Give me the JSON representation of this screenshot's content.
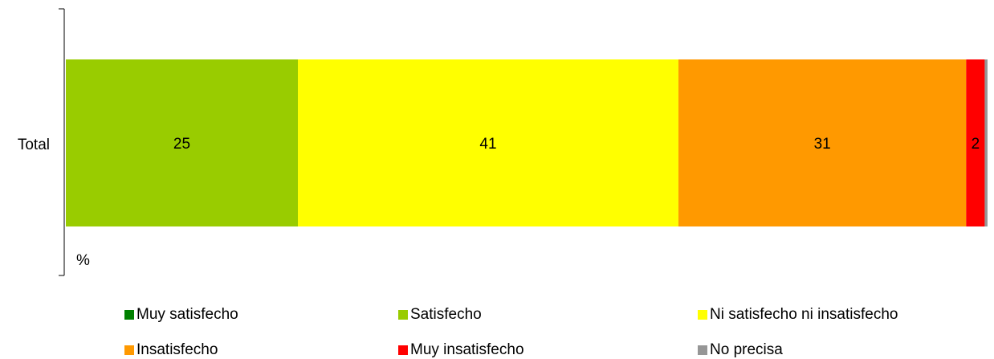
{
  "chart_data": {
    "type": "bar",
    "orientation": "horizontal",
    "stacked": true,
    "categories": [
      "Total"
    ],
    "unit_label": "%",
    "xlim": [
      0,
      100
    ],
    "grid": false,
    "legend_position": "bottom",
    "series": [
      {
        "name": "Muy satisfecho",
        "values": [
          0
        ],
        "color": "#008000",
        "label": ""
      },
      {
        "name": "Satisfecho",
        "values": [
          25
        ],
        "color": "#99CC00",
        "label": "25"
      },
      {
        "name": "Ni satisfecho ni insatisfecho",
        "values": [
          41
        ],
        "color": "#FFFF00",
        "label": "41"
      },
      {
        "name": "Insatisfecho",
        "values": [
          31
        ],
        "color": "#FF9900",
        "label": "31"
      },
      {
        "name": "Muy insatisfecho",
        "values": [
          2
        ],
        "color": "#FF0000",
        "label": "2"
      },
      {
        "name": "No precisa",
        "values": [
          0.3
        ],
        "color": "#969696",
        "label": ""
      }
    ]
  }
}
